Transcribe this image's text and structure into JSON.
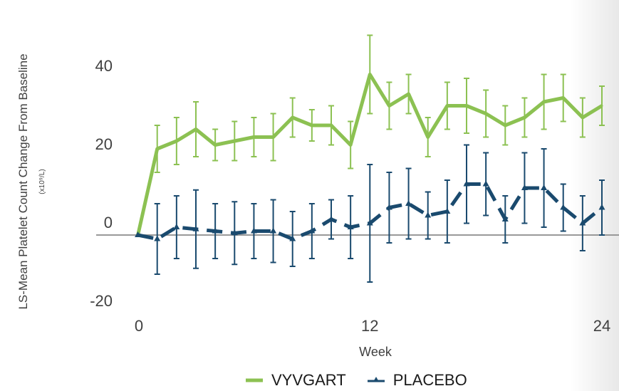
{
  "chart_data": {
    "type": "line",
    "ylabel": "LS-Mean Platelet Count Change From Baseline",
    "ylabel_unit": "(x10⁹/L)",
    "xlabel": "Week",
    "x_ticks": [
      "0",
      "12",
      "24"
    ],
    "y_ticks": [
      "40",
      "20",
      "0",
      "-20"
    ],
    "xlim": [
      -0.5,
      24
    ],
    "ylim": [
      -20,
      44
    ],
    "grid": false,
    "legend_position": "bottom",
    "series": [
      {
        "name": "VYVGART",
        "color": "#8cc152",
        "style": "solid",
        "points": [
          {
            "x": 0,
            "y": 0,
            "err": 0
          },
          {
            "x": 1,
            "y": 22,
            "err": 6
          },
          {
            "x": 2,
            "y": 24,
            "err": 6
          },
          {
            "x": 3,
            "y": 27,
            "err": 7
          },
          {
            "x": 4,
            "y": 23,
            "err": 4
          },
          {
            "x": 5,
            "y": 24,
            "err": 5
          },
          {
            "x": 6,
            "y": 25,
            "err": 5
          },
          {
            "x": 7,
            "y": 25,
            "err": 6
          },
          {
            "x": 8,
            "y": 30,
            "err": 5
          },
          {
            "x": 9,
            "y": 28,
            "err": 4
          },
          {
            "x": 10,
            "y": 28,
            "err": 5
          },
          {
            "x": 11,
            "y": 23,
            "err": 6
          },
          {
            "x": 12,
            "y": 41,
            "err": 10
          },
          {
            "x": 13,
            "y": 33,
            "err": 6
          },
          {
            "x": 14,
            "y": 36,
            "err": 5
          },
          {
            "x": 15,
            "y": 25,
            "err": 5
          },
          {
            "x": 16,
            "y": 33,
            "err": 6
          },
          {
            "x": 17,
            "y": 33,
            "err": 7
          },
          {
            "x": 18,
            "y": 31,
            "err": 6
          },
          {
            "x": 19,
            "y": 28,
            "err": 5
          },
          {
            "x": 20,
            "y": 30,
            "err": 5
          },
          {
            "x": 21,
            "y": 34,
            "err": 7
          },
          {
            "x": 22,
            "y": 35,
            "err": 6
          },
          {
            "x": 23,
            "y": 30,
            "err": 5
          },
          {
            "x": 24,
            "y": 33,
            "err": 5
          }
        ]
      },
      {
        "name": "PLACEBO",
        "color": "#1a4a6e",
        "style": "dashed",
        "points": [
          {
            "x": 0,
            "y": 0,
            "err": 0
          },
          {
            "x": 1,
            "y": -1,
            "err": 9
          },
          {
            "x": 2,
            "y": 2,
            "err": 8
          },
          {
            "x": 3,
            "y": 1.5,
            "err": 10
          },
          {
            "x": 4,
            "y": 1,
            "err": 7
          },
          {
            "x": 5,
            "y": 0.5,
            "err": 8
          },
          {
            "x": 6,
            "y": 1,
            "err": 7
          },
          {
            "x": 7,
            "y": 1,
            "err": 8
          },
          {
            "x": 8,
            "y": -1,
            "err": 7
          },
          {
            "x": 9,
            "y": 1,
            "err": 7
          },
          {
            "x": 10,
            "y": 4,
            "err": 5
          },
          {
            "x": 11,
            "y": 2,
            "err": 8
          },
          {
            "x": 12,
            "y": 3,
            "err": 15
          },
          {
            "x": 13,
            "y": 7,
            "err": 9
          },
          {
            "x": 14,
            "y": 8,
            "err": 9
          },
          {
            "x": 15,
            "y": 5,
            "err": 6
          },
          {
            "x": 16,
            "y": 6,
            "err": 8
          },
          {
            "x": 17,
            "y": 13,
            "err": 10
          },
          {
            "x": 18,
            "y": 13,
            "err": 8
          },
          {
            "x": 19,
            "y": 4,
            "err": 6
          },
          {
            "x": 20,
            "y": 12,
            "err": 9
          },
          {
            "x": 21,
            "y": 12,
            "err": 10
          },
          {
            "x": 22,
            "y": 7,
            "err": 6
          },
          {
            "x": 23,
            "y": 3,
            "err": 7
          },
          {
            "x": 24,
            "y": 7,
            "err": 7
          }
        ]
      }
    ]
  }
}
